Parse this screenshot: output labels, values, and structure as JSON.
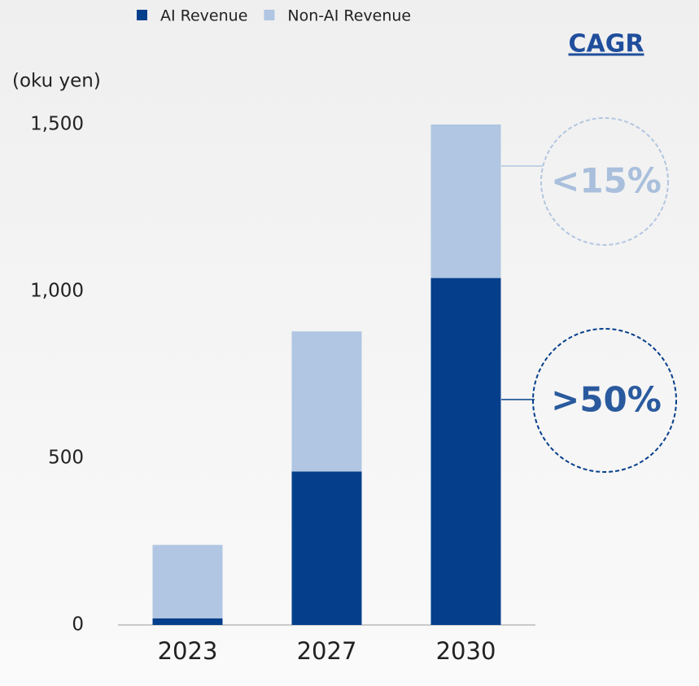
{
  "chart_data": {
    "type": "bar",
    "stacked": true,
    "y_label": "(oku yen)",
    "annotation_title": "CAGR",
    "categories": [
      "2023",
      "2027",
      "2030"
    ],
    "series": [
      {
        "name": "AI Revenue",
        "color": "#053f8c",
        "values": [
          20,
          460,
          1040
        ],
        "cagr": ">50%"
      },
      {
        "name": "Non-AI Revenue",
        "color": "#b0c6e2",
        "values": [
          220,
          420,
          460
        ],
        "cagr": "<15%"
      }
    ],
    "ylim": [
      0,
      1500
    ],
    "yticks": [
      0,
      500,
      {
        "value": 1000,
        "label": "1,000"
      },
      {
        "value": 1500,
        "label": "1,500"
      }
    ],
    "grid": false
  }
}
